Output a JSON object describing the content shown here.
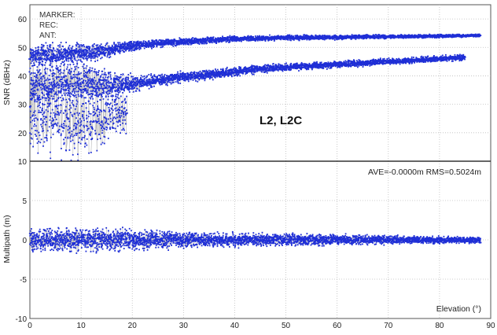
{
  "chart_data": [
    {
      "type": "scatter",
      "panel": "snr",
      "ylabel": "SNR (dBHz)",
      "xlim": [
        0,
        90
      ],
      "ylim": [
        10,
        65
      ],
      "x_ticks": [
        0,
        10,
        20,
        30,
        40,
        50,
        60,
        70,
        80,
        90
      ],
      "y_ticks": [
        10,
        20,
        30,
        40,
        50,
        60
      ],
      "header_lines": [
        "MARKER:",
        "REC:",
        "ANT:"
      ],
      "annotation": "L2,  L2C",
      "series": [
        {
          "role": "upper-band",
          "x": [
            0,
            5,
            10,
            15,
            20,
            25,
            30,
            35,
            40,
            45,
            50,
            55,
            60,
            65,
            70,
            75,
            80,
            85,
            88
          ],
          "y": [
            47,
            47.5,
            48,
            49,
            50.5,
            51.5,
            52,
            52.5,
            53,
            53.2,
            53.4,
            53.5,
            53.6,
            53.7,
            53.8,
            53.9,
            54,
            54.1,
            54.2
          ],
          "spread": [
            4,
            4,
            3.5,
            2.5,
            1.6,
            1.4,
            1.2,
            1.1,
            1,
            0.9,
            0.9,
            0.8,
            0.8,
            0.7,
            0.7,
            0.6,
            0.6,
            0.5,
            0.5
          ]
        },
        {
          "role": "lower-band",
          "x": [
            0,
            5,
            10,
            15,
            20,
            25,
            30,
            35,
            40,
            45,
            50,
            55,
            60,
            65,
            70,
            75,
            80,
            85
          ],
          "y": [
            36,
            37,
            37.5,
            37,
            37,
            38.5,
            39.5,
            40.5,
            41.5,
            42.5,
            43,
            43.5,
            44,
            44.5,
            45,
            45.5,
            46,
            46.5
          ],
          "spread": [
            9,
            8,
            7,
            5,
            3,
            2,
            1.8,
            1.6,
            1.5,
            1.4,
            1.3,
            1.2,
            1.2,
            1.1,
            1.1,
            1,
            1,
            1
          ]
        },
        {
          "role": "low-elevation-noise",
          "x": [
            0,
            2,
            4,
            6,
            8,
            10,
            12,
            14,
            16,
            18,
            19
          ],
          "y": [
            28,
            27,
            26,
            25,
            24,
            24,
            24,
            25,
            26,
            27,
            28
          ],
          "spread": [
            14,
            14,
            14,
            13,
            13,
            12,
            12,
            11,
            10,
            9,
            8
          ]
        }
      ],
      "colors": {
        "points": "#1f2fd6",
        "links": "#b8b8b8"
      }
    },
    {
      "type": "scatter",
      "panel": "multipath",
      "ylabel": "Multipath (m)",
      "xlabel": "Elevation (°)",
      "xlim": [
        0,
        90
      ],
      "ylim": [
        -10,
        10
      ],
      "x_ticks": [
        0,
        10,
        20,
        30,
        40,
        50,
        60,
        70,
        80,
        90
      ],
      "y_ticks": [
        -10,
        -5,
        0,
        5
      ],
      "stats_text": "AVE=-0.0000m RMS=0.5024m",
      "series": [
        {
          "role": "multipath-residuals",
          "x": [
            0,
            5,
            10,
            15,
            20,
            25,
            30,
            35,
            40,
            45,
            50,
            55,
            60,
            65,
            70,
            75,
            80,
            85,
            88
          ],
          "y": [
            0,
            0,
            0,
            0,
            0,
            0,
            0,
            0,
            0,
            0,
            0,
            0,
            0,
            0,
            0,
            0,
            0,
            0,
            0
          ],
          "spread": [
            1.4,
            1.5,
            1.5,
            1.4,
            1.3,
            1.1,
            1,
            0.9,
            0.85,
            0.8,
            0.75,
            0.7,
            0.65,
            0.6,
            0.55,
            0.5,
            0.45,
            0.4,
            0.35
          ]
        }
      ],
      "colors": {
        "points": "#1f2fd6",
        "links": "#b8b8b8"
      }
    }
  ]
}
